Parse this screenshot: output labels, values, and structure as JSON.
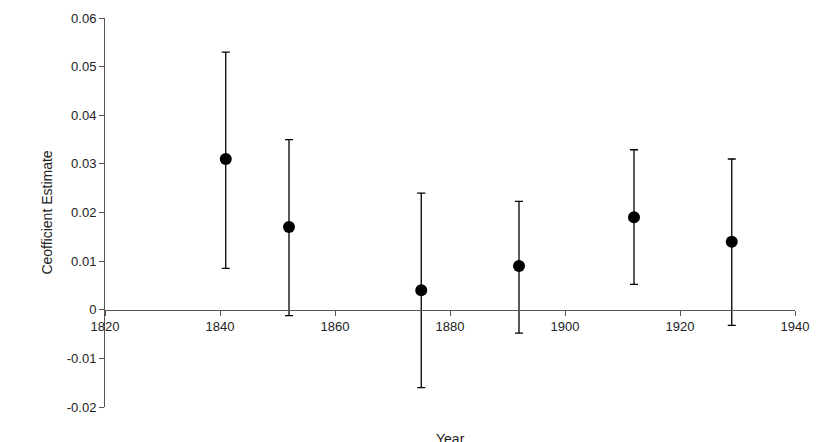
{
  "chart_data": {
    "type": "scatter",
    "x_label": "Year",
    "y_label": "Ceofficient Estimate",
    "x": [
      1841,
      1852,
      1875,
      1892,
      1912,
      1929
    ],
    "values": [
      0.031,
      0.017,
      0.004,
      0.009,
      0.019,
      0.014
    ],
    "lower": [
      0.0085,
      -0.0012,
      -0.016,
      -0.0048,
      0.0052,
      -0.0032
    ],
    "upper": [
      0.053,
      0.035,
      0.024,
      0.0223,
      0.0329,
      0.031
    ],
    "color": "#000000",
    "marker": "circle",
    "xlim": [
      1820,
      1940
    ],
    "xticks": [
      1820,
      1840,
      1860,
      1880,
      1900,
      1920,
      1940
    ],
    "ylim": [
      -0.02,
      0.06
    ],
    "yticks": [
      -0.02,
      -0.01,
      0,
      0.01,
      0.02,
      0.03,
      0.04,
      0.05,
      0.06
    ],
    "grid": false
  }
}
